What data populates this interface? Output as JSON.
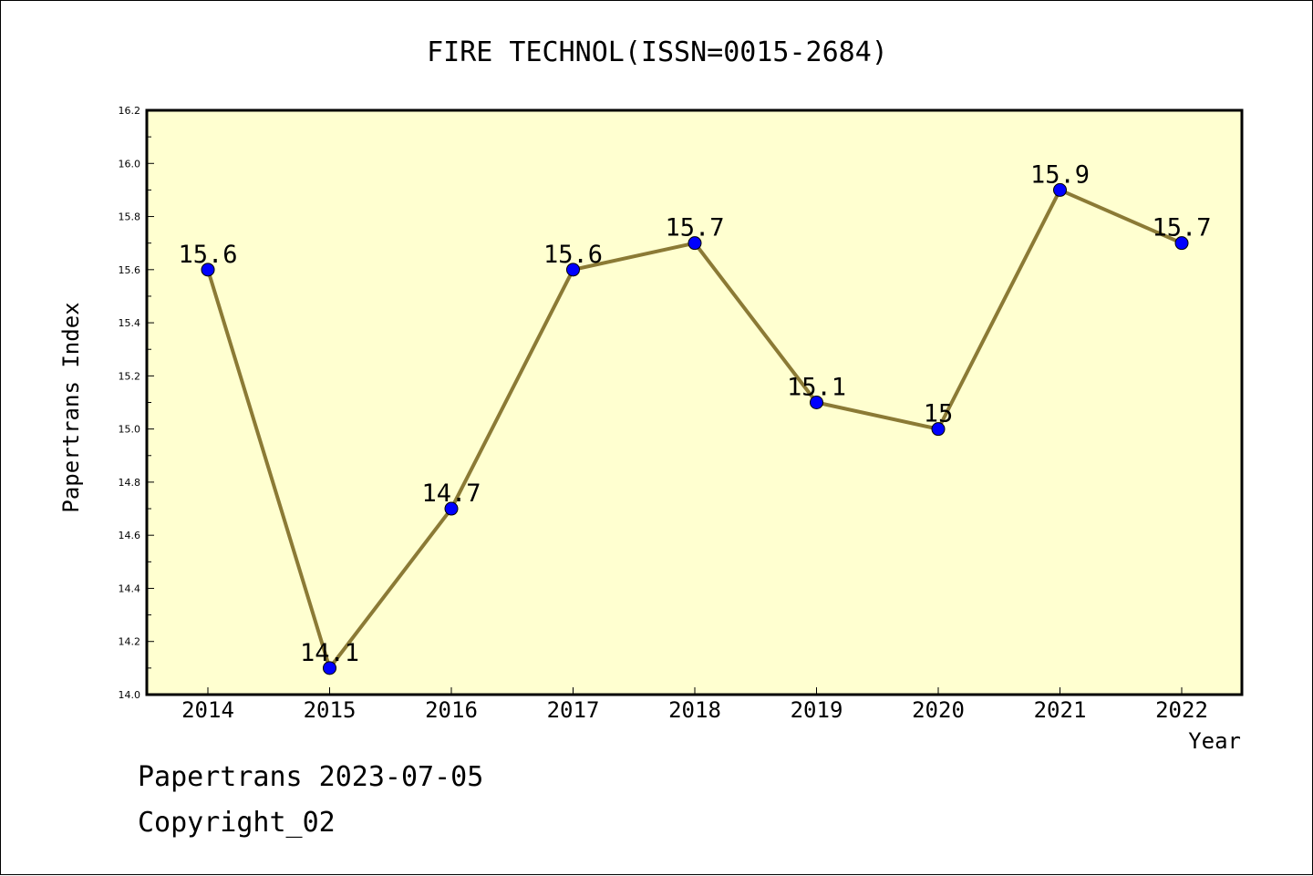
{
  "chart_data": {
    "type": "line",
    "title": "FIRE TECHNOL(ISSN=0015-2684)",
    "xlabel": "Year",
    "ylabel": "Papertrans Index",
    "categories": [
      "2014",
      "2015",
      "2016",
      "2017",
      "2018",
      "2019",
      "2020",
      "2021",
      "2022"
    ],
    "values": [
      15.6,
      14.1,
      14.7,
      15.6,
      15.7,
      15.1,
      15.0,
      15.9,
      15.7
    ],
    "data_labels": [
      "15.6",
      "14.1",
      "14.7",
      "15.6",
      "15.7",
      "15.1",
      "15",
      "15.9",
      "15.7"
    ],
    "ylim": [
      14.0,
      16.2
    ],
    "yticks": [
      "14.0",
      "14.2",
      "14.4",
      "14.6",
      "14.8",
      "15.0",
      "15.2",
      "15.4",
      "15.6",
      "15.8",
      "16.0",
      "16.2"
    ],
    "grid": false,
    "legend": "none",
    "colors": {
      "plot_background": "#ffffd0",
      "line": "#8b7a35",
      "marker": "#0000ff"
    }
  },
  "footer": {
    "date_line": "Papertrans 2023-07-05",
    "copyright_line": "Copyright_02"
  }
}
